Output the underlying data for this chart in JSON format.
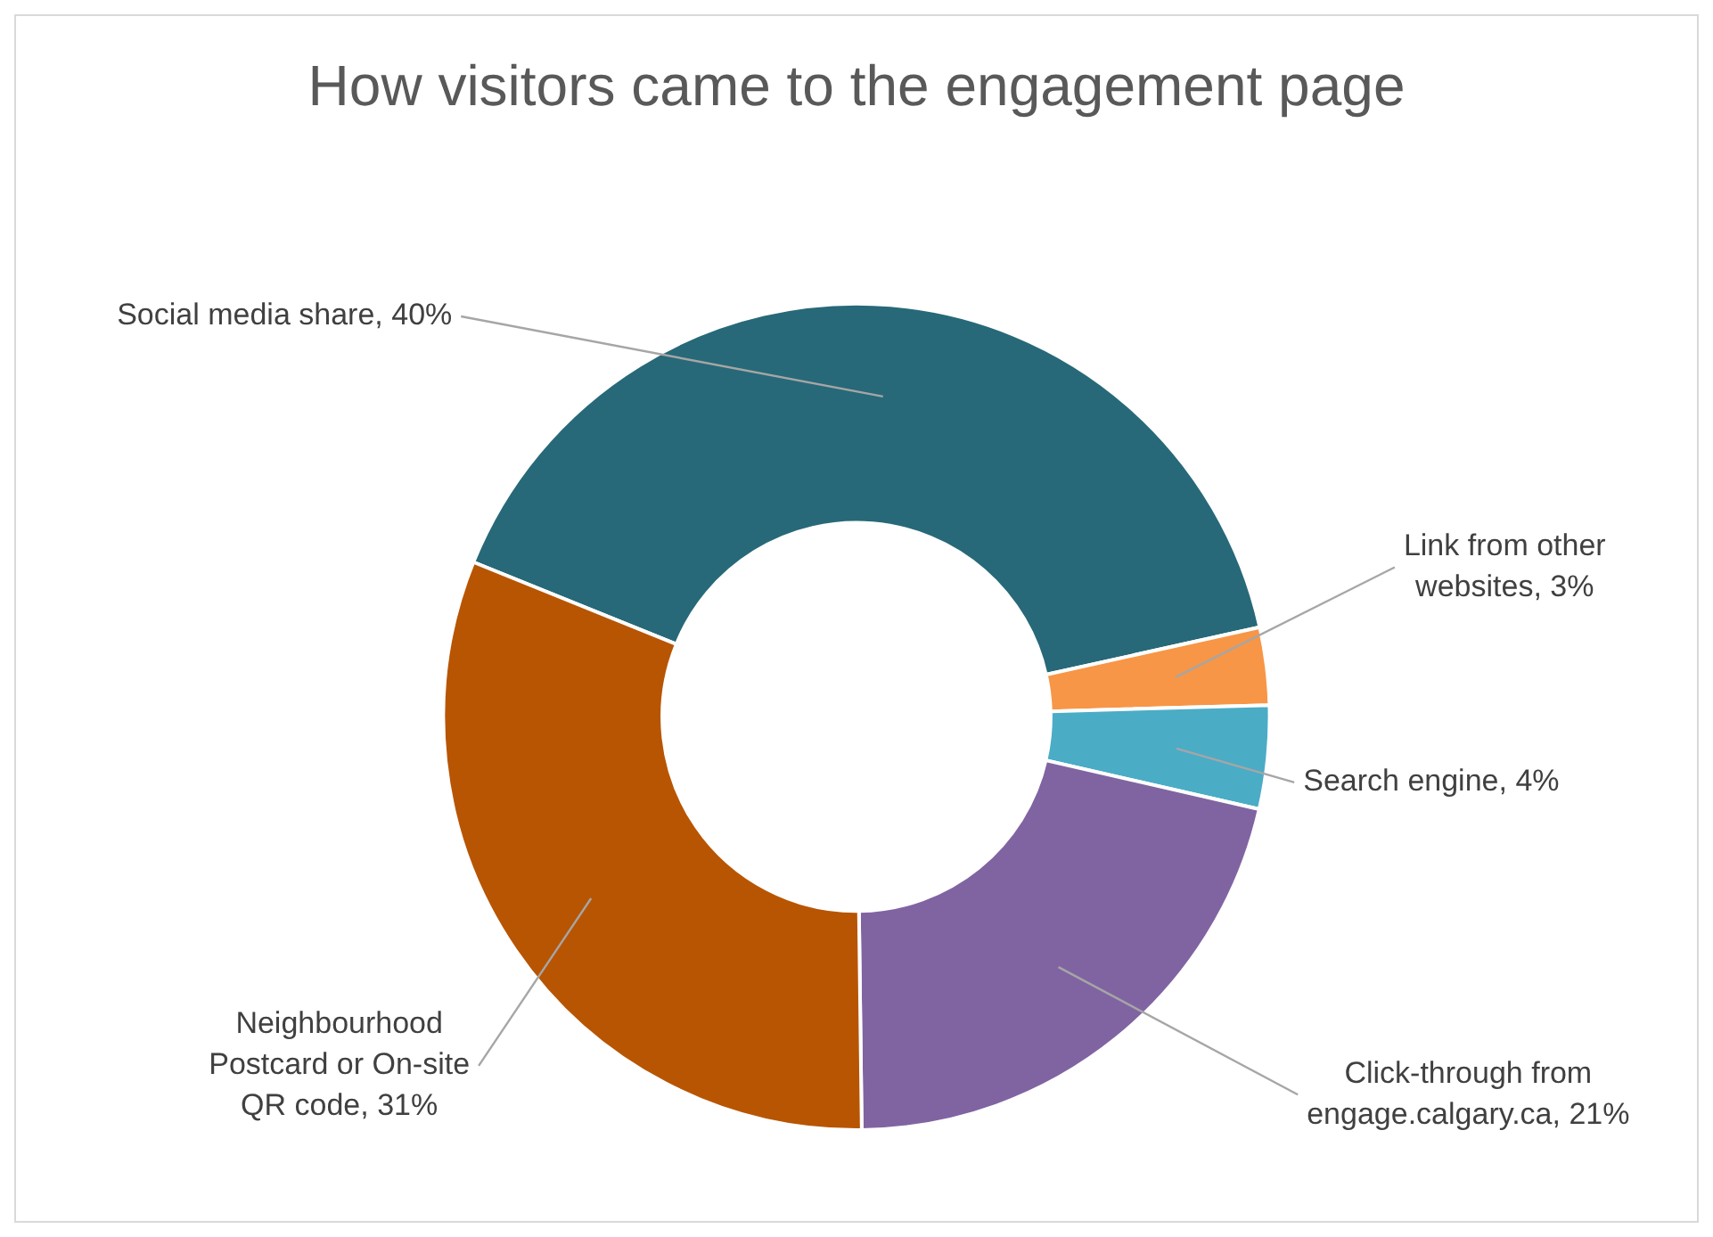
{
  "chart_data": {
    "type": "donut",
    "title": "How visitors came to the engagement page",
    "categories": [
      "Social media share",
      "Link from other websites",
      "Search engine",
      "Click-through from engage.calgary.ca",
      "Neighbourhood Postcard or On-site QR code"
    ],
    "values": [
      40,
      3,
      4,
      21,
      31
    ],
    "value_labels": [
      "40%",
      "3%",
      "4%",
      "21%",
      "31%"
    ],
    "colors": [
      "#276978",
      "#f79646",
      "#4bacc6",
      "#8064a2",
      "#b85503"
    ],
    "legend": false
  }
}
